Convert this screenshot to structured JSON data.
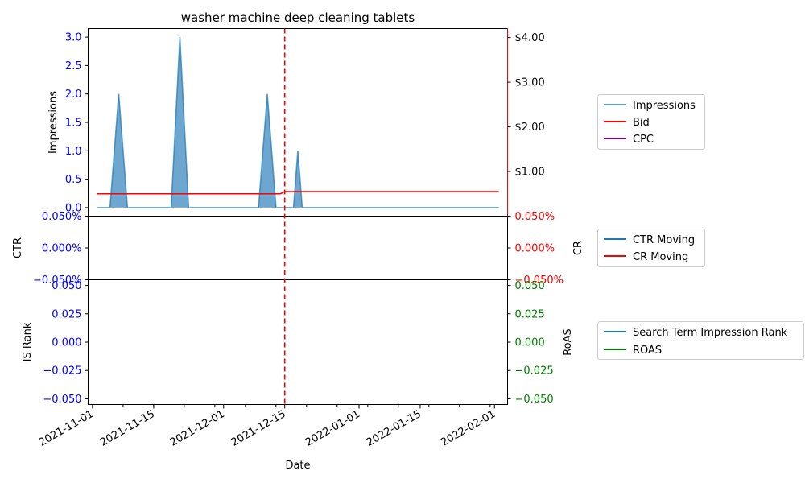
{
  "chart_data": [
    {
      "type": "area",
      "title": "washer machine deep cleaning tablets",
      "xlabel": "Date",
      "ylabel_left": "Impressions",
      "ylabel_right": "",
      "x_ticks": [
        "2021-11-01",
        "2021-11-15",
        "2021-12-01",
        "2021-12-15",
        "2022-01-01",
        "2022-01-15",
        "2022-02-01"
      ],
      "xlim": [
        "2021-10-31",
        "2022-02-04"
      ],
      "ylim_left": [
        -0.15,
        3.15
      ],
      "yticks_left": [
        "0.0",
        "0.5",
        "1.0",
        "1.5",
        "2.0",
        "2.5",
        "3.0"
      ],
      "ylim_right": [
        0.0,
        4.2
      ],
      "yticks_right": [
        "$1.00",
        "$2.00",
        "$3.00",
        "$4.00"
      ],
      "vline_date": "2021-12-15",
      "series": [
        {
          "name": "Impressions",
          "axis": "left",
          "color": "#1f77b4",
          "x": [
            "2021-11-02",
            "2021-11-05",
            "2021-11-07",
            "2021-11-09",
            "2021-11-19",
            "2021-11-21",
            "2021-11-23",
            "2021-12-09",
            "2021-12-11",
            "2021-12-13",
            "2021-12-17",
            "2021-12-18",
            "2021-12-19",
            "2022-02-02"
          ],
          "values": [
            0,
            0,
            2,
            0,
            0,
            3,
            0,
            0,
            2,
            0,
            0,
            1,
            0,
            0
          ]
        },
        {
          "name": "Bid",
          "axis": "right",
          "color": "#ff0000",
          "x": [
            "2021-11-02",
            "2021-12-14",
            "2021-12-15",
            "2022-02-02"
          ],
          "values": [
            0.5,
            0.5,
            0.55,
            0.55
          ]
        },
        {
          "name": "CPC",
          "axis": "right",
          "color": "#800080",
          "x": [],
          "values": []
        }
      ]
    },
    {
      "type": "line",
      "ylabel_left": "CTR",
      "ylabel_right": "CR",
      "ylim_left": [
        -0.05,
        0.05
      ],
      "yticks_left": [
        "0.050%",
        "0.000%",
        "−0.050%"
      ],
      "yticks_right": [
        "0.050%",
        "0.000%",
        "−0.050%"
      ],
      "series": [
        {
          "name": "CTR Moving",
          "color": "#1f77b4",
          "x": [],
          "values": []
        },
        {
          "name": "CR Moving",
          "color": "#ff0000",
          "x": [],
          "values": []
        }
      ]
    },
    {
      "type": "line",
      "ylabel_left": "IS Rank",
      "ylabel_right": "RoAS",
      "ylim_left": [
        -0.055,
        0.055
      ],
      "yticks_left": [
        "0.050",
        "0.025",
        "0.000",
        "−0.025",
        "−0.050"
      ],
      "yticks_right": [
        "0.050",
        "0.025",
        "0.000",
        "−0.025",
        "−0.050"
      ],
      "series": [
        {
          "name": "Search Term Impression Rank",
          "color": "#1f77b4",
          "x": [],
          "values": []
        },
        {
          "name": "ROAS",
          "color": "#008000",
          "x": [],
          "values": []
        }
      ]
    }
  ],
  "colors": {
    "left_axis": "#0000ff",
    "right_axis_top": "#ff0000",
    "right_axis_mid": "#ff0000",
    "right_axis_bottom": "#008000",
    "vline": "#ff0000"
  }
}
